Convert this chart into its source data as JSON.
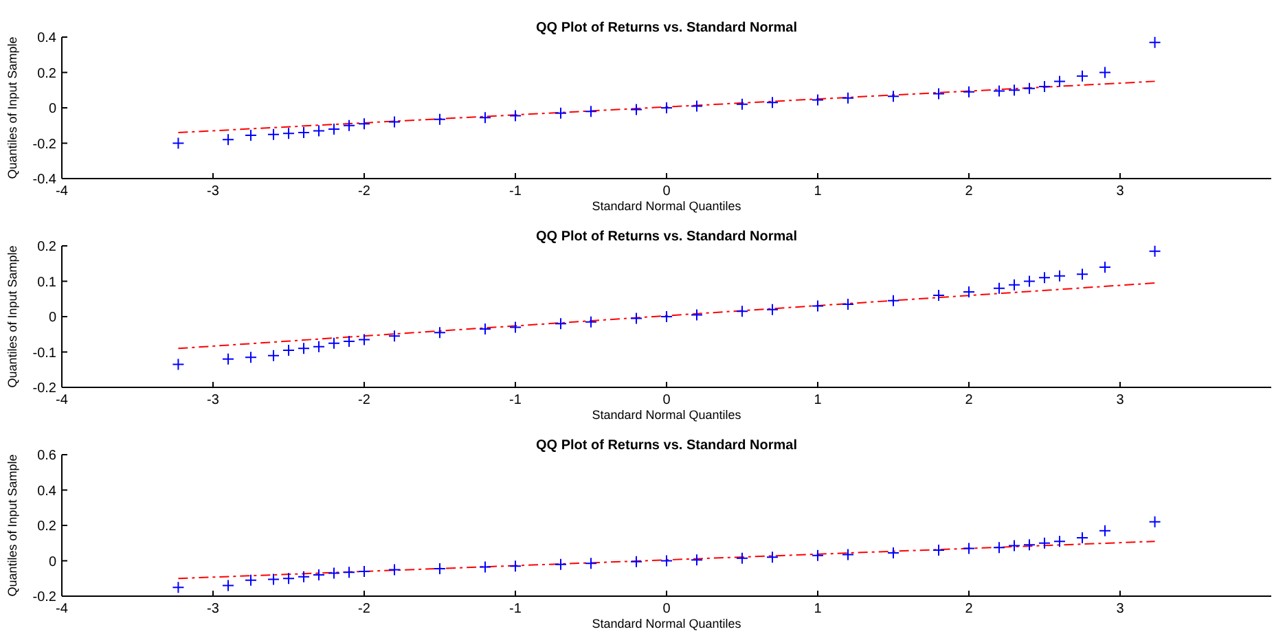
{
  "chart_data": [
    {
      "type": "scatter",
      "title": "QQ Plot of Returns vs. Standard Normal",
      "xlabel": "Standard Normal Quantiles",
      "ylabel": "Quantiles of Input Sample",
      "xlim": [
        -4,
        4
      ],
      "xticks": [
        -4,
        -3,
        -2,
        -1,
        0,
        1,
        2,
        3
      ],
      "ylim": [
        -0.4,
        0.4
      ],
      "yticks": [
        -0.4,
        -0.2,
        0,
        0.2,
        0.4
      ],
      "series": [
        {
          "type": "scatter",
          "color": "#0000ff",
          "marker": "cross",
          "x": [
            -3.23,
            -2.9,
            -2.75,
            -2.6,
            -2.5,
            -2.4,
            -2.3,
            -2.2,
            -2.1,
            -2.0,
            -1.8,
            -1.5,
            -1.2,
            -1,
            -0.7,
            -0.5,
            -0.2,
            0,
            0.2,
            0.5,
            0.7,
            1,
            1.2,
            1.5,
            1.8,
            2,
            2.2,
            2.3,
            2.4,
            2.5,
            2.6,
            2.75,
            2.9,
            3.23
          ],
          "values": [
            -0.2,
            -0.18,
            -0.155,
            -0.15,
            -0.145,
            -0.14,
            -0.13,
            -0.12,
            -0.1,
            -0.09,
            -0.08,
            -0.065,
            -0.055,
            -0.045,
            -0.03,
            -0.02,
            -0.01,
            0,
            0.01,
            0.02,
            0.03,
            0.045,
            0.055,
            0.065,
            0.08,
            0.09,
            0.095,
            0.1,
            0.11,
            0.12,
            0.15,
            0.18,
            0.2,
            0.37
          ]
        },
        {
          "type": "line",
          "color": "#ff0000",
          "line_style": "dashed",
          "x": [
            -3.23,
            3.23
          ],
          "values": [
            -0.14,
            0.15
          ]
        }
      ]
    },
    {
      "type": "scatter",
      "title": "QQ Plot of Returns vs. Standard Normal",
      "xlabel": "Standard Normal Quantiles",
      "ylabel": "Quantiles of Input Sample",
      "xlim": [
        -4,
        4
      ],
      "xticks": [
        -4,
        -3,
        -2,
        -1,
        0,
        1,
        2,
        3
      ],
      "ylim": [
        -0.2,
        0.2
      ],
      "yticks": [
        -0.2,
        -0.1,
        0,
        0.1,
        0.2
      ],
      "series": [
        {
          "type": "scatter",
          "color": "#0000ff",
          "marker": "cross",
          "x": [
            -3.23,
            -2.9,
            -2.75,
            -2.6,
            -2.5,
            -2.4,
            -2.3,
            -2.2,
            -2.1,
            -2.0,
            -1.8,
            -1.5,
            -1.2,
            -1,
            -0.7,
            -0.5,
            -0.2,
            0,
            0.2,
            0.5,
            0.7,
            1,
            1.2,
            1.5,
            1.8,
            2,
            2.2,
            2.3,
            2.4,
            2.5,
            2.6,
            2.75,
            2.9,
            3.23
          ],
          "values": [
            -0.135,
            -0.12,
            -0.115,
            -0.11,
            -0.095,
            -0.09,
            -0.085,
            -0.075,
            -0.07,
            -0.065,
            -0.055,
            -0.045,
            -0.035,
            -0.03,
            -0.02,
            -0.015,
            -0.005,
            0,
            0.005,
            0.015,
            0.02,
            0.03,
            0.035,
            0.045,
            0.06,
            0.07,
            0.08,
            0.09,
            0.1,
            0.11,
            0.115,
            0.12,
            0.14,
            0.185
          ]
        },
        {
          "type": "line",
          "color": "#ff0000",
          "line_style": "dashed",
          "x": [
            -3.23,
            3.23
          ],
          "values": [
            -0.09,
            0.095
          ]
        }
      ]
    },
    {
      "type": "scatter",
      "title": "QQ Plot of Returns vs.  Standard Normal",
      "xlabel": "Standard Normal Quantiles",
      "ylabel": "Quantiles of Input Sample",
      "xlim": [
        -4,
        4
      ],
      "xticks": [
        -4,
        -3,
        -2,
        -1,
        0,
        1,
        2,
        3
      ],
      "ylim": [
        -0.2,
        0.6
      ],
      "yticks": [
        -0.2,
        0,
        0.2,
        0.4,
        0.6
      ],
      "series": [
        {
          "type": "scatter",
          "color": "#0000ff",
          "marker": "cross",
          "x": [
            -3.23,
            -2.9,
            -2.75,
            -2.6,
            -2.5,
            -2.4,
            -2.3,
            -2.2,
            -2.1,
            -2.0,
            -1.8,
            -1.5,
            -1.2,
            -1,
            -0.7,
            -0.5,
            -0.2,
            0,
            0.2,
            0.5,
            0.7,
            1,
            1.2,
            1.5,
            1.8,
            2,
            2.2,
            2.3,
            2.4,
            2.5,
            2.6,
            2.75,
            2.9,
            3.23
          ],
          "values": [
            -0.15,
            -0.14,
            -0.11,
            -0.105,
            -0.1,
            -0.09,
            -0.08,
            -0.07,
            -0.065,
            -0.06,
            -0.05,
            -0.045,
            -0.035,
            -0.03,
            -0.02,
            -0.015,
            -0.005,
            0,
            0.005,
            0.015,
            0.02,
            0.03,
            0.035,
            0.045,
            0.06,
            0.07,
            0.075,
            0.085,
            0.09,
            0.1,
            0.11,
            0.13,
            0.17,
            0.22
          ]
        },
        {
          "type": "line",
          "color": "#ff0000",
          "line_style": "dashed",
          "x": [
            -3.23,
            3.23
          ],
          "values": [
            -0.1,
            0.11
          ]
        }
      ]
    }
  ]
}
